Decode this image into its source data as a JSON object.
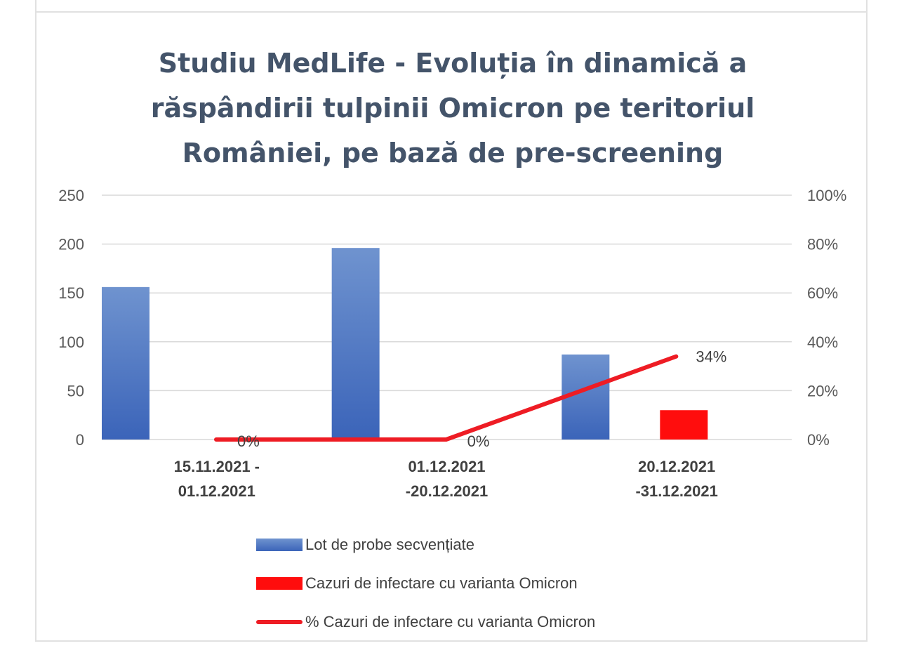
{
  "chart_data": {
    "type": "bar",
    "title_lines": [
      "Studiu MedLife - Evoluția în dinamică a",
      "răspândirii tulpinii Omicron pe teritoriul",
      "României, pe bază de pre-screening"
    ],
    "categories": [
      [
        "15.11.2021 -",
        "01.12.2021"
      ],
      [
        "01.12.2021",
        "-20.12.2021"
      ],
      [
        "20.12.2021",
        "-31.12.2021"
      ]
    ],
    "y_left": {
      "ticks": [
        "0",
        "50",
        "100",
        "150",
        "200",
        "250"
      ],
      "ylim": [
        0,
        250
      ]
    },
    "y_right": {
      "ticks": [
        "0%",
        "20%",
        "40%",
        "60%",
        "80%",
        "100%"
      ],
      "ylim": [
        0,
        1
      ]
    },
    "grid": true,
    "legend_position": "bottom",
    "series": [
      {
        "name": "Lot de probe secvențiate",
        "type": "bar",
        "axis": "left",
        "color": "#4472c4",
        "values": [
          156,
          196,
          87
        ]
      },
      {
        "name": "Cazuri de infectare cu varianta Omicron",
        "type": "bar",
        "axis": "left",
        "color": "#ff0d0d",
        "values": [
          0,
          0,
          30
        ]
      },
      {
        "name": "% Cazuri de infectare cu varianta Omicron",
        "type": "line",
        "axis": "right",
        "color": "#ee1c24",
        "values": [
          0,
          0,
          0.34
        ],
        "labels": [
          "0%",
          "0%",
          "34%"
        ]
      }
    ]
  }
}
